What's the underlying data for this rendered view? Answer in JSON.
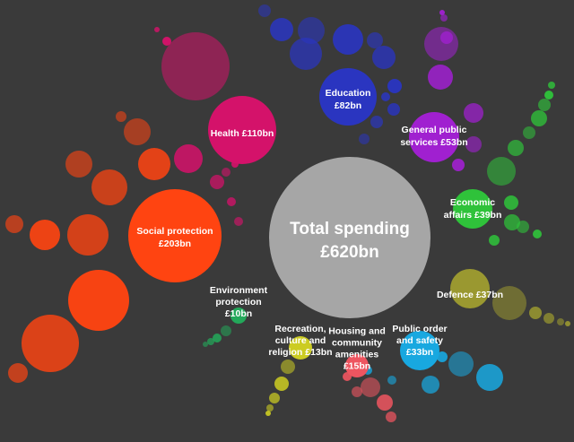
{
  "center": {
    "line1": "Total spending",
    "line2": "£620bn",
    "value": 620,
    "color": "#a6a6a6"
  },
  "categories": [
    {
      "key": "social-protection",
      "lines": [
        "Social protection",
        "£203bn"
      ],
      "value": 203,
      "color": "#ff4411"
    },
    {
      "key": "health",
      "lines": [
        "Health £110bn"
      ],
      "value": 110,
      "color": "#d4126a"
    },
    {
      "key": "education",
      "lines": [
        "Education",
        "£82bn"
      ],
      "value": 82,
      "color": "#2a35c0"
    },
    {
      "key": "general-public-services",
      "lines": [
        "General public",
        "services £53bn"
      ],
      "value": 53,
      "color": "#a020d0"
    },
    {
      "key": "economic-affairs",
      "lines": [
        "Economic",
        "affairs £39bn"
      ],
      "value": 39,
      "color": "#2fc23a"
    },
    {
      "key": "defence",
      "lines": [
        "Defence £37bn"
      ],
      "value": 37,
      "color": "#9a9830"
    },
    {
      "key": "public-order-and-safety",
      "lines": [
        "Public order",
        "and safety",
        "£33bn"
      ],
      "value": 33,
      "color": "#18a8e0"
    },
    {
      "key": "housing-and-community-amenities",
      "lines": [
        "Housing and",
        "community",
        "amenities",
        "£15bn"
      ],
      "value": 15,
      "color": "#ee5560"
    },
    {
      "key": "recreation-culture-and-religion",
      "lines": [
        "Recreation,",
        "culture and",
        "religion £13bn"
      ],
      "value": 13,
      "color": "#cccc22"
    },
    {
      "key": "environment-protection",
      "lines": [
        "Environment",
        "protection",
        "£10bn"
      ],
      "value": 10,
      "color": "#23a85a"
    }
  ]
}
